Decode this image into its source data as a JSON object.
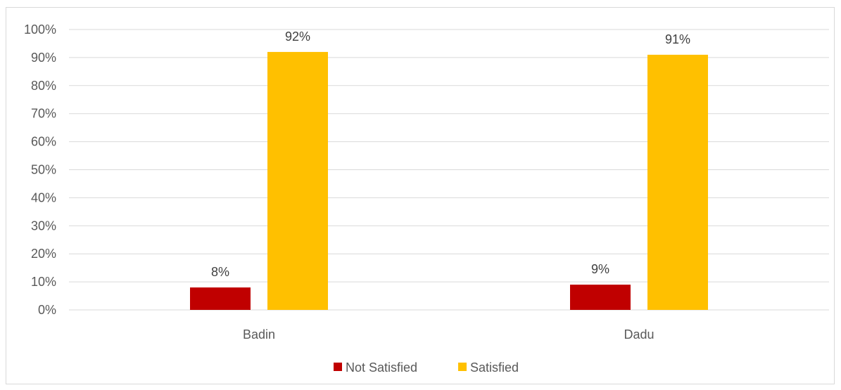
{
  "chart_data": {
    "type": "bar",
    "categories": [
      "Badin",
      "Dadu"
    ],
    "series": [
      {
        "name": "Not Satisfied",
        "color": "#C00000",
        "values": [
          8,
          9
        ],
        "labels": [
          "8%",
          "9%"
        ]
      },
      {
        "name": "Satisfied",
        "color": "#FFC000",
        "values": [
          92,
          91
        ],
        "labels": [
          "92%",
          "91%"
        ]
      }
    ],
    "ylim": [
      0,
      100
    ],
    "yticks": [
      "0%",
      "10%",
      "20%",
      "30%",
      "40%",
      "50%",
      "60%",
      "70%",
      "80%",
      "90%",
      "100%"
    ],
    "grid": true,
    "legend_position": "bottom"
  }
}
